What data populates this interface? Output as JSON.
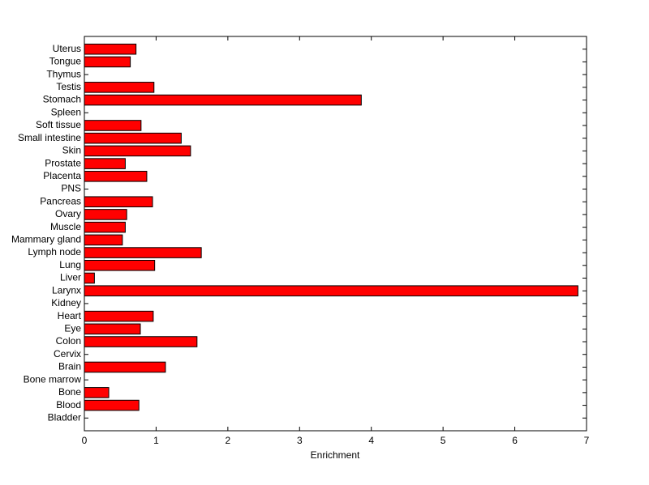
{
  "chart_data": {
    "type": "barh",
    "x_label": "Enrichment",
    "categories": [
      "Bladder",
      "Blood",
      "Bone",
      "Bone marrow",
      "Brain",
      "Cervix",
      "Colon",
      "Eye",
      "Heart",
      "Kidney",
      "Larynx",
      "Liver",
      "Lung",
      "Lymph node",
      "Mammary gland",
      "Muscle",
      "Ovary",
      "Pancreas",
      "PNS",
      "Placenta",
      "Prostate",
      "Skin",
      "Small intestine",
      "Soft tissue",
      "Spleen",
      "Stomach",
      "Testis",
      "Thymus",
      "Tongue",
      "Uterus"
    ],
    "values": [
      0,
      0.76,
      0.34,
      0,
      1.13,
      0,
      1.57,
      0.78,
      0.96,
      0,
      6.88,
      0.14,
      0.98,
      1.63,
      0.53,
      0.57,
      0.59,
      0.95,
      0,
      0.87,
      0.57,
      1.48,
      1.35,
      0.79,
      0,
      3.86,
      0.97,
      0,
      0.64,
      0.72
    ],
    "color": "#ff0000",
    "xlim": [
      0,
      7
    ],
    "xticks": [
      0,
      1,
      2,
      3,
      4,
      5,
      6,
      7
    ]
  }
}
